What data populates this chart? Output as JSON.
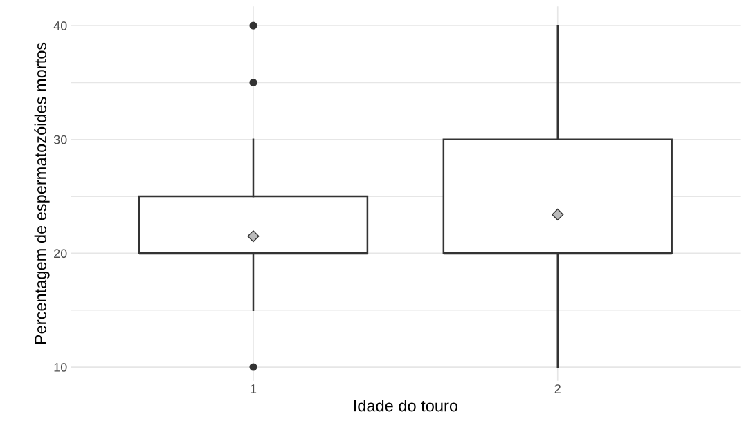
{
  "chart_data": {
    "type": "box",
    "xlabel": "Idade do touro",
    "ylabel": "Percentagem de espermatozóides mortos",
    "categories": [
      "1",
      "2"
    ],
    "boxes": [
      {
        "low": 15,
        "q1": 20,
        "median": 20,
        "q3": 25,
        "high": 30,
        "mean": 21.5,
        "outliers": [
          10,
          35,
          40
        ]
      },
      {
        "low": 10,
        "q1": 20,
        "median": 20,
        "q3": 30,
        "high": 40,
        "mean": 23.4
      }
    ],
    "ylim": [
      8.8,
      41.7
    ],
    "yticks": [
      10,
      {
        "value": 15,
        "label": null
      },
      20,
      {
        "value": 25,
        "label": null
      },
      30,
      {
        "value": 35,
        "label": null
      },
      40
    ],
    "grid": true,
    "color": "#333333"
  }
}
